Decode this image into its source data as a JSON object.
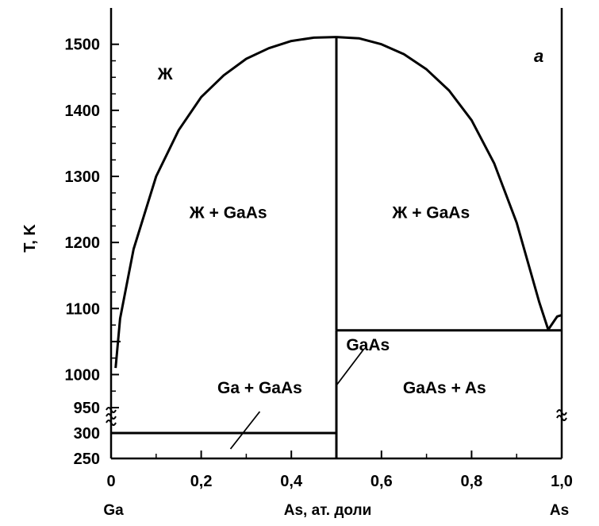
{
  "chart_data": {
    "type": "line",
    "panel_label": "а",
    "ylabel": "T, K",
    "xlabel": "As, ат. доли",
    "xlim": [
      0,
      1.0
    ],
    "x_ticks": [
      0,
      0.2,
      0.4,
      0.6,
      0.8,
      1.0
    ],
    "x_tick_labels": [
      "0",
      "0,2",
      "0,4",
      "0,6",
      "0,8",
      "1,0"
    ],
    "x_end_labels": {
      "left": "Ga",
      "right": "As"
    },
    "y_ticks_lower": [
      250,
      300
    ],
    "y_ticks_upper": [
      950,
      1000,
      1100,
      1200,
      1300,
      1400,
      1500
    ],
    "y_tick_labels": [
      "250",
      "300",
      "950",
      "1000",
      "1100",
      "1200",
      "1300",
      "1400",
      "1500"
    ],
    "axis_break": "between 300 and 950",
    "series": [
      {
        "x": [
          0.01,
          0.02,
          0.05,
          0.1,
          0.15,
          0.2,
          0.25,
          0.3,
          0.35,
          0.4,
          0.45,
          0.5
        ],
        "y": [
          1010,
          1085,
          1190,
          1300,
          1370,
          1420,
          1453,
          1478,
          1494,
          1505,
          1510,
          1511
        ]
      },
      {
        "x": [
          0.5,
          0.55,
          0.6,
          0.65,
          0.7,
          0.75,
          0.8,
          0.85,
          0.9,
          0.95,
          0.97
        ],
        "y": [
          1511,
          1509,
          1500,
          1485,
          1462,
          1430,
          1385,
          1320,
          1230,
          1110,
          1068
        ]
      },
      {
        "x": [
          0.97,
          0.99,
          1.0
        ],
        "y": [
          1068,
          1088,
          1090
        ]
      },
      {
        "x": [
          0.5,
          0.5
        ],
        "y": [
          1511,
          1067
        ]
      },
      {
        "x": [
          0.5,
          0.5
        ],
        "y": [
          1067,
          250
        ]
      },
      {
        "x": [
          0.5,
          1.0
        ],
        "y": [
          1067,
          1067
        ]
      },
      {
        "x": [
          0,
          0.5
        ],
        "y": [
          303,
          303
        ]
      }
    ],
    "annotations": [
      {
        "text": "Ж",
        "x": 0.12,
        "y": 1455
      },
      {
        "text": "Ж + GaAs",
        "x": 0.26,
        "y": 1245
      },
      {
        "text": "Ж + GaAs",
        "x": 0.71,
        "y": 1245
      },
      {
        "text": "GaAs",
        "x": 0.57,
        "y": 1045
      },
      {
        "text": "Ga + GaAs",
        "x": 0.33,
        "y": 980
      },
      {
        "text": "GaAs + As",
        "x": 0.74,
        "y": 980
      }
    ]
  }
}
